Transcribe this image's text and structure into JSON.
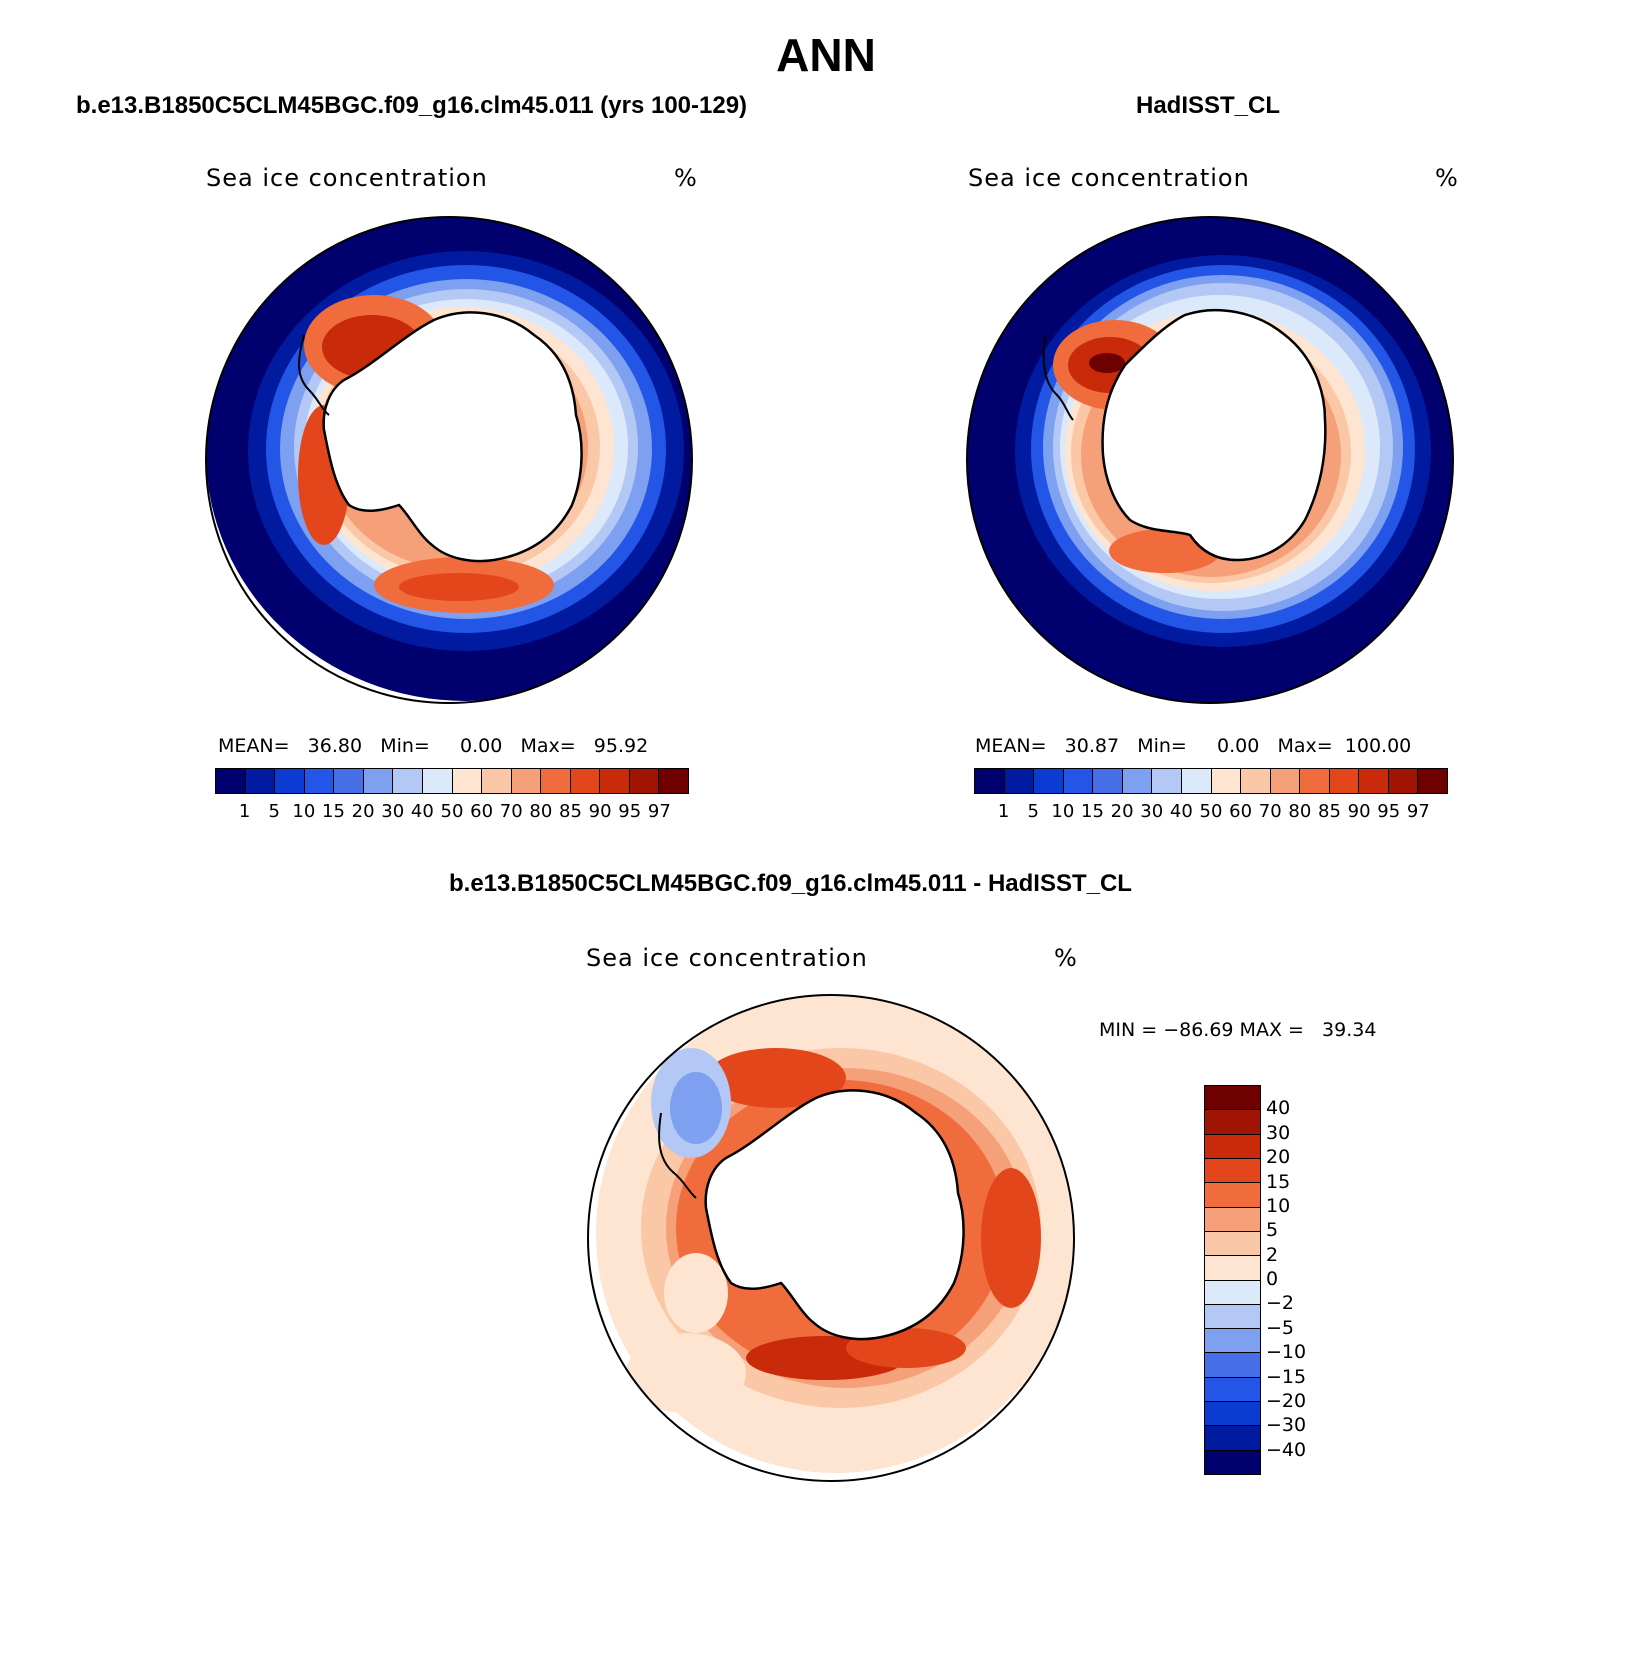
{
  "main_title": "ANN",
  "panel_left": {
    "case_title": "b.e13.B1850C5CLM45BGC.f09_g16.clm45.011 (yrs 100-129)",
    "var_title": "Sea ice concentration",
    "units": "%",
    "mean_label": "MEAN=",
    "mean_value": "36.80",
    "min_label": "Min=",
    "min_value": "0.00",
    "max_label": "Max=",
    "max_value": "95.92"
  },
  "panel_right": {
    "case_title": "HadISST_CL",
    "var_title": "Sea ice concentration",
    "units": "%",
    "mean_label": "MEAN=",
    "mean_value": "30.87",
    "min_label": "Min=",
    "min_value": "0.00",
    "max_label": "Max=",
    "max_value": "100.00"
  },
  "colorbar_levels": [
    "1",
    "5",
    "10",
    "15",
    "20",
    "30",
    "40",
    "50",
    "60",
    "70",
    "80",
    "85",
    "90",
    "95",
    "97"
  ],
  "colorbar_colors": [
    "#00006e",
    "#001aa0",
    "#0a3cd2",
    "#2356e6",
    "#466ee6",
    "#7ea0f0",
    "#b4c8f5",
    "#dce9fa",
    "#fde5d2",
    "#fac8a6",
    "#f6a07a",
    "#f06c3c",
    "#e4461c",
    "#c82a0a",
    "#a01404",
    "#6e0000"
  ],
  "panel_diff": {
    "case_title": "b.e13.B1850C5CLM45BGC.f09_g16.clm45.011 - HadISST_CL",
    "var_title": "Sea ice concentration",
    "units": "%",
    "minmax_text": "MIN = −86.69 MAX =   39.34",
    "levels": [
      "40",
      "30",
      "20",
      "15",
      "10",
      "5",
      "2",
      "0",
      "−2",
      "−5",
      "−10",
      "−15",
      "−20",
      "−30",
      "−40"
    ],
    "colors": [
      "#6e0000",
      "#a01404",
      "#c82a0a",
      "#e4461c",
      "#f06c3c",
      "#f6a07a",
      "#fac8a6",
      "#fde5d2",
      "#dce9fa",
      "#b4c8f5",
      "#7ea0f0",
      "#466ee6",
      "#2356e6",
      "#0a3cd2",
      "#001aa0",
      "#00006e"
    ]
  }
}
